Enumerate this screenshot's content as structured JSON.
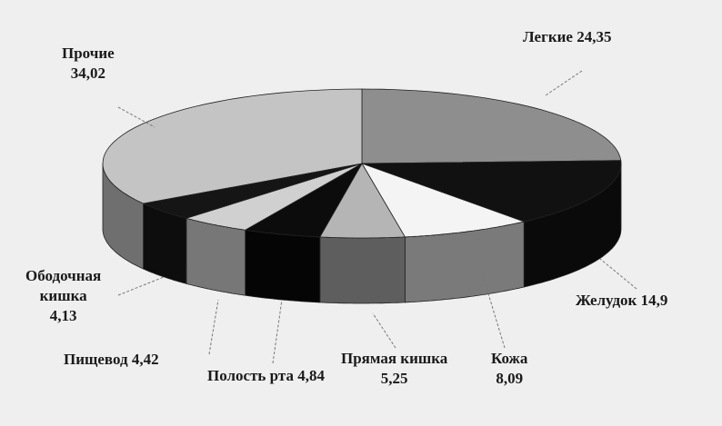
{
  "chart_data": {
    "type": "pie",
    "three_d": true,
    "categories": [
      "Легкие",
      "Желудок",
      "Кожа",
      "Прямая кишка",
      "Полость рта",
      "Пищевод",
      "Ободочная кишка",
      "Прочие"
    ],
    "values": [
      24.35,
      14.9,
      8.09,
      5.25,
      4.84,
      4.42,
      4.13,
      34.02
    ],
    "value_labels": [
      "24,35",
      "14,9",
      "8,09",
      "5,25",
      "4,84",
      "4,42",
      "4,13",
      "34,02"
    ],
    "colors": [
      "#8e8e8e",
      "#111111",
      "#f4f4f4",
      "#b5b5b5",
      "#0c0c0c",
      "#d0d0d0",
      "#151515",
      "#c4c4c4"
    ],
    "side_colors": [
      "#6a6a6a",
      "#0a0a0a",
      "#7a7a7a",
      "#5e5e5e",
      "#050505",
      "#777777",
      "#0d0d0d",
      "#6f6f6f"
    ],
    "legend": "none"
  }
}
